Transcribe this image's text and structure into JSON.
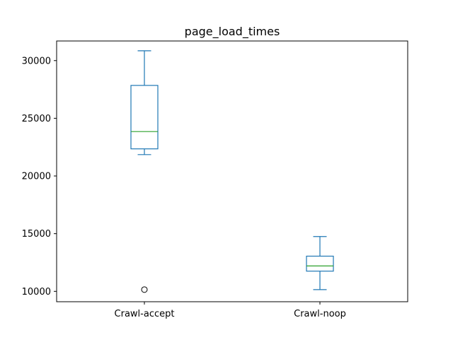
{
  "chart_data": {
    "type": "box",
    "title": "page_load_times",
    "xlabel": "",
    "ylabel": "",
    "ylim": [
      9100,
      31700
    ],
    "yticks": [
      10000,
      15000,
      20000,
      25000,
      30000
    ],
    "categories": [
      "Crawl-accept",
      "Crawl-noop"
    ],
    "boxes": [
      {
        "label": "Crawl-accept",
        "whislo": 21850,
        "q1": 22350,
        "med": 23850,
        "q3": 27850,
        "whishi": 30850,
        "fliers": [
          10150
        ]
      },
      {
        "label": "Crawl-noop",
        "whislo": 10150,
        "q1": 11750,
        "med": 12200,
        "q3": 13050,
        "whishi": 14750,
        "fliers": []
      }
    ],
    "grid": false,
    "colors": {
      "box": "#1f77b4",
      "median": "#2ca02c",
      "flier": "#000000",
      "axes": "#000000"
    }
  }
}
